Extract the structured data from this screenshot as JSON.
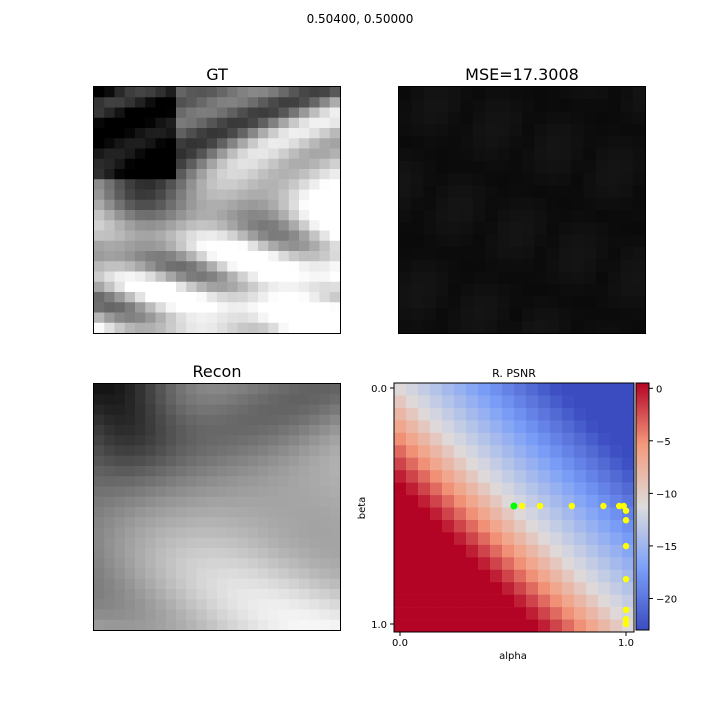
{
  "figure": {
    "suptitle": "0.50400, 0.50000"
  },
  "panels": {
    "gt": {
      "title": "GT"
    },
    "error": {
      "title": "MSE=17.3008"
    },
    "recon": {
      "title": "Recon"
    }
  },
  "chart_data": {
    "type": "heatmap",
    "title": "R. PSNR",
    "xlabel": "alpha",
    "ylabel": "beta",
    "x_ticks": [
      "0.0",
      "1.0"
    ],
    "y_ticks": [
      "0.0",
      "1.0"
    ],
    "xlim": [
      0.0,
      1.0
    ],
    "ylim": [
      0.0,
      1.0
    ],
    "grid_size": 20,
    "colormap": "coolwarm",
    "colorbar": {
      "min": -23,
      "max": 0.5,
      "ticks": [
        0,
        -5,
        -10,
        -15,
        -20
      ]
    },
    "current_point": {
      "alpha": 0.504,
      "beta": 0.5,
      "color": "#00ff00"
    },
    "points_color": "#ffff00",
    "points": [
      [
        0.54,
        0.5
      ],
      [
        0.62,
        0.5
      ],
      [
        0.76,
        0.5
      ],
      [
        0.9,
        0.5
      ],
      [
        0.97,
        0.5
      ],
      [
        0.99,
        0.5
      ],
      [
        1.0,
        0.52
      ],
      [
        1.0,
        0.56
      ],
      [
        1.0,
        0.67
      ],
      [
        1.0,
        0.81
      ],
      [
        1.0,
        0.94
      ],
      [
        1.0,
        0.98
      ],
      [
        1.0,
        1.0
      ]
    ]
  },
  "colors": {
    "background": "#ffffff",
    "axis": "#000000"
  }
}
